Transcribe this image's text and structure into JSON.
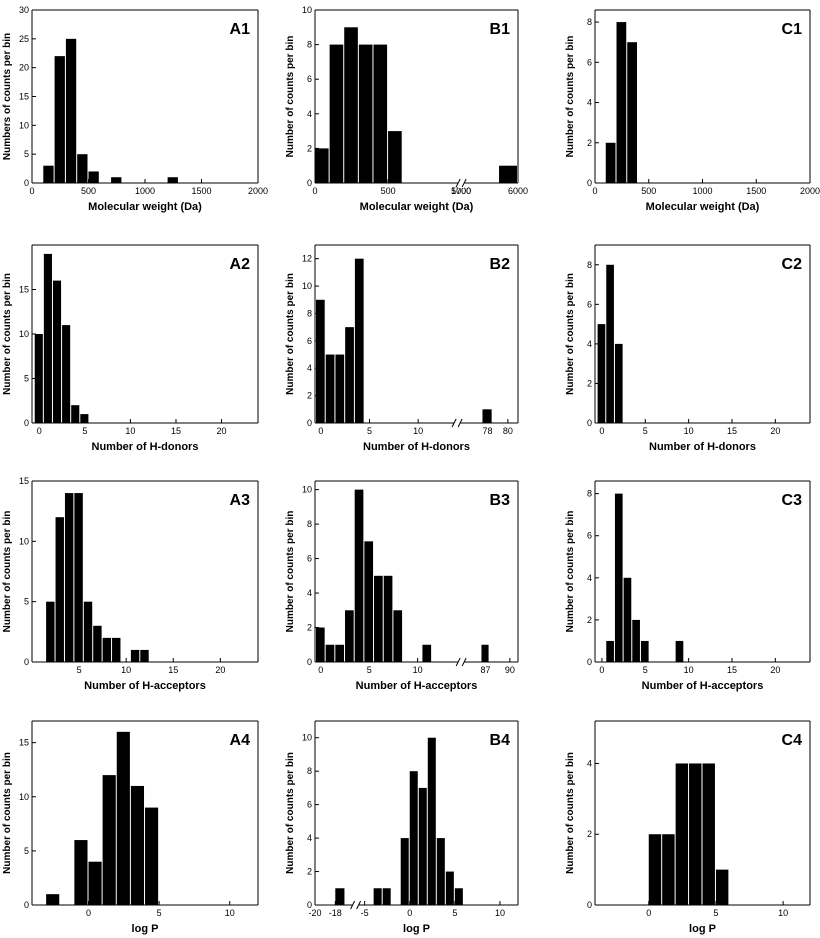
{
  "colors": {
    "bar": "#000000",
    "axis": "#000000",
    "background": "#ffffff"
  },
  "chart_data": [
    {
      "id": "A1",
      "type": "bar",
      "panel_label": "A1",
      "xlabel": "Molecular weight (Da)",
      "ylabel": "Numbers of counts per bin",
      "xlim": [
        0,
        2000
      ],
      "ylim": [
        0,
        30
      ],
      "xticks": [
        0,
        500,
        1000,
        1500,
        2000
      ],
      "yticks": [
        0,
        5,
        10,
        15,
        20,
        25,
        30
      ],
      "bin_width": 100,
      "bars": [
        {
          "x": 150,
          "y": 3
        },
        {
          "x": 250,
          "y": 22
        },
        {
          "x": 350,
          "y": 25
        },
        {
          "x": 450,
          "y": 5
        },
        {
          "x": 550,
          "y": 2
        },
        {
          "x": 750,
          "y": 1
        },
        {
          "x": 1250,
          "y": 1
        }
      ]
    },
    {
      "id": "B1",
      "type": "bar",
      "panel_label": "B1",
      "xlabel": "Molecular weight (Da)",
      "ylabel": "Number of counts per bin",
      "ylim": [
        0,
        10
      ],
      "yticks": [
        0,
        2,
        4,
        6,
        8,
        10
      ],
      "broken_axis": true,
      "segments": [
        {
          "xlim": [
            0,
            1000
          ],
          "frac": 0.72
        },
        {
          "xlim": [
            5700,
            6000
          ],
          "frac": 0.28
        }
      ],
      "xticks": [
        0,
        500,
        1000,
        5700,
        6000
      ],
      "bin_width": 100,
      "bars": [
        {
          "x": 50,
          "y": 2
        },
        {
          "x": 150,
          "y": 8
        },
        {
          "x": 250,
          "y": 9
        },
        {
          "x": 350,
          "y": 8
        },
        {
          "x": 450,
          "y": 8
        },
        {
          "x": 550,
          "y": 3
        },
        {
          "x": 5950,
          "y": 1
        }
      ]
    },
    {
      "id": "C1",
      "type": "bar",
      "panel_label": "C1",
      "xlabel": "Molecular weight (Da)",
      "ylabel": "Number of counts per bin",
      "xlim": [
        0,
        2000
      ],
      "ylim": [
        0,
        8.6
      ],
      "xticks": [
        0,
        500,
        1000,
        1500,
        2000
      ],
      "yticks": [
        0,
        2,
        4,
        6,
        8
      ],
      "bin_width": 100,
      "bars": [
        {
          "x": 150,
          "y": 2
        },
        {
          "x": 250,
          "y": 8
        },
        {
          "x": 350,
          "y": 7
        }
      ]
    },
    {
      "id": "A2",
      "type": "bar",
      "panel_label": "A2",
      "xlabel": "Number of H-donors",
      "ylabel": "Number of counts per bin",
      "xlim": [
        -0.8,
        24
      ],
      "ylim": [
        0,
        20
      ],
      "xticks": [
        0,
        5,
        10,
        15,
        20
      ],
      "yticks": [
        0,
        5,
        10,
        15
      ],
      "bin_width": 1,
      "bars": [
        {
          "x": 0,
          "y": 10
        },
        {
          "x": 1,
          "y": 19
        },
        {
          "x": 2,
          "y": 16
        },
        {
          "x": 3,
          "y": 11
        },
        {
          "x": 4,
          "y": 2
        },
        {
          "x": 5,
          "y": 1
        }
      ]
    },
    {
      "id": "B2",
      "type": "bar",
      "panel_label": "B2",
      "xlabel": "Number of H-donors",
      "ylabel": "Number of counts per bin",
      "ylim": [
        0,
        13
      ],
      "yticks": [
        0,
        2,
        4,
        6,
        8,
        10,
        12
      ],
      "broken_axis": true,
      "segments": [
        {
          "xlim": [
            -0.6,
            14
          ],
          "frac": 0.7
        },
        {
          "xlim": [
            75,
            81
          ],
          "frac": 0.3
        }
      ],
      "xticks": [
        0,
        5,
        10,
        78,
        80
      ],
      "bin_width": 1,
      "bars": [
        {
          "x": 0,
          "y": 9
        },
        {
          "x": 1,
          "y": 5
        },
        {
          "x": 2,
          "y": 5
        },
        {
          "x": 3,
          "y": 7
        },
        {
          "x": 4,
          "y": 12
        },
        {
          "x": 78,
          "y": 1
        }
      ]
    },
    {
      "id": "C2",
      "type": "bar",
      "panel_label": "C2",
      "xlabel": "Number of H-donors",
      "ylabel": "Number of counts per bin",
      "xlim": [
        -0.8,
        24
      ],
      "ylim": [
        0,
        9
      ],
      "xticks": [
        0,
        5,
        10,
        15,
        20
      ],
      "yticks": [
        0,
        2,
        4,
        6,
        8
      ],
      "bin_width": 1,
      "bars": [
        {
          "x": 0,
          "y": 5
        },
        {
          "x": 1,
          "y": 8
        },
        {
          "x": 2,
          "y": 4
        }
      ]
    },
    {
      "id": "A3",
      "type": "bar",
      "panel_label": "A3",
      "xlabel": "Number of H-acceptors",
      "ylabel": "Number of counts per bin",
      "xlim": [
        0,
        24
      ],
      "ylim": [
        0,
        15
      ],
      "xticks": [
        5,
        10,
        15,
        20
      ],
      "yticks": [
        0,
        5,
        10,
        15
      ],
      "bin_width": 1,
      "bars": [
        {
          "x": 2,
          "y": 5
        },
        {
          "x": 3,
          "y": 12
        },
        {
          "x": 4,
          "y": 14
        },
        {
          "x": 5,
          "y": 14
        },
        {
          "x": 6,
          "y": 5
        },
        {
          "x": 7,
          "y": 3
        },
        {
          "x": 8,
          "y": 2
        },
        {
          "x": 9,
          "y": 2
        },
        {
          "x": 11,
          "y": 1
        },
        {
          "x": 12,
          "y": 1
        }
      ]
    },
    {
      "id": "B3",
      "type": "bar",
      "panel_label": "B3",
      "xlabel": "Number of H-acceptors",
      "ylabel": "Number of counts per bin",
      "ylim": [
        0,
        10.5
      ],
      "yticks": [
        0,
        2,
        4,
        6,
        8,
        10
      ],
      "broken_axis": true,
      "segments": [
        {
          "xlim": [
            -0.6,
            14.5
          ],
          "frac": 0.72
        },
        {
          "xlim": [
            84,
            91
          ],
          "frac": 0.28
        }
      ],
      "xticks": [
        0,
        5,
        10,
        87,
        90
      ],
      "bin_width": 1,
      "bars": [
        {
          "x": 0,
          "y": 2
        },
        {
          "x": 1,
          "y": 1
        },
        {
          "x": 2,
          "y": 1
        },
        {
          "x": 3,
          "y": 3
        },
        {
          "x": 4,
          "y": 10
        },
        {
          "x": 5,
          "y": 7
        },
        {
          "x": 6,
          "y": 5
        },
        {
          "x": 7,
          "y": 5
        },
        {
          "x": 8,
          "y": 3
        },
        {
          "x": 11,
          "y": 1
        },
        {
          "x": 87,
          "y": 1
        }
      ]
    },
    {
      "id": "C3",
      "type": "bar",
      "panel_label": "C3",
      "xlabel": "Number of H-acceptors",
      "ylabel": "Number of counts per bin",
      "xlim": [
        -0.8,
        24
      ],
      "ylim": [
        0,
        8.6
      ],
      "xticks": [
        0,
        5,
        10,
        15,
        20
      ],
      "yticks": [
        0,
        2,
        4,
        6,
        8
      ],
      "bin_width": 1,
      "bars": [
        {
          "x": 1,
          "y": 1
        },
        {
          "x": 2,
          "y": 8
        },
        {
          "x": 3,
          "y": 4
        },
        {
          "x": 4,
          "y": 2
        },
        {
          "x": 5,
          "y": 1
        },
        {
          "x": 9,
          "y": 1
        }
      ]
    },
    {
      "id": "A4",
      "type": "bar",
      "panel_label": "A4",
      "xlabel": "log P",
      "ylabel": "Number of counts per bin",
      "xlim": [
        -4,
        12
      ],
      "ylim": [
        0,
        17
      ],
      "xticks": [
        0,
        5,
        10
      ],
      "yticks": [
        0,
        5,
        10,
        15
      ],
      "bin_width": 1,
      "bars": [
        {
          "x": -2.5,
          "y": 1
        },
        {
          "x": -0.5,
          "y": 6
        },
        {
          "x": 0.5,
          "y": 4
        },
        {
          "x": 1.5,
          "y": 12
        },
        {
          "x": 2.5,
          "y": 16
        },
        {
          "x": 3.5,
          "y": 11
        },
        {
          "x": 4.5,
          "y": 9
        }
      ]
    },
    {
      "id": "B4",
      "type": "bar",
      "panel_label": "B4",
      "xlabel": "log P",
      "ylabel": "Number of counts per bin",
      "ylim": [
        0,
        11
      ],
      "yticks": [
        0,
        2,
        4,
        6,
        8,
        10
      ],
      "broken_axis": true,
      "segments": [
        {
          "xlim": [
            -20,
            -16
          ],
          "frac": 0.2
        },
        {
          "xlim": [
            -6,
            12
          ],
          "frac": 0.8
        }
      ],
      "xticks": [
        -20,
        -18,
        -5,
        0,
        5,
        10
      ],
      "bin_width": 1,
      "bars": [
        {
          "x": -17.5,
          "y": 1
        },
        {
          "x": -3.5,
          "y": 1
        },
        {
          "x": -2.5,
          "y": 1
        },
        {
          "x": -0.5,
          "y": 4
        },
        {
          "x": 0.5,
          "y": 8
        },
        {
          "x": 1.5,
          "y": 7
        },
        {
          "x": 2.5,
          "y": 10
        },
        {
          "x": 3.5,
          "y": 4
        },
        {
          "x": 4.5,
          "y": 2
        },
        {
          "x": 5.5,
          "y": 1
        }
      ]
    },
    {
      "id": "C4",
      "type": "bar",
      "panel_label": "C4",
      "xlabel": "log P",
      "ylabel": "Number of counts per bin",
      "xlim": [
        -4,
        12
      ],
      "ylim": [
        0,
        5.2
      ],
      "xticks": [
        0,
        5,
        10
      ],
      "yticks": [
        0,
        2,
        4
      ],
      "bin_width": 1,
      "bars": [
        {
          "x": 0.5,
          "y": 2
        },
        {
          "x": 1.5,
          "y": 2
        },
        {
          "x": 2.5,
          "y": 4
        },
        {
          "x": 3.5,
          "y": 4
        },
        {
          "x": 4.5,
          "y": 4
        },
        {
          "x": 5.5,
          "y": 1
        }
      ]
    }
  ]
}
